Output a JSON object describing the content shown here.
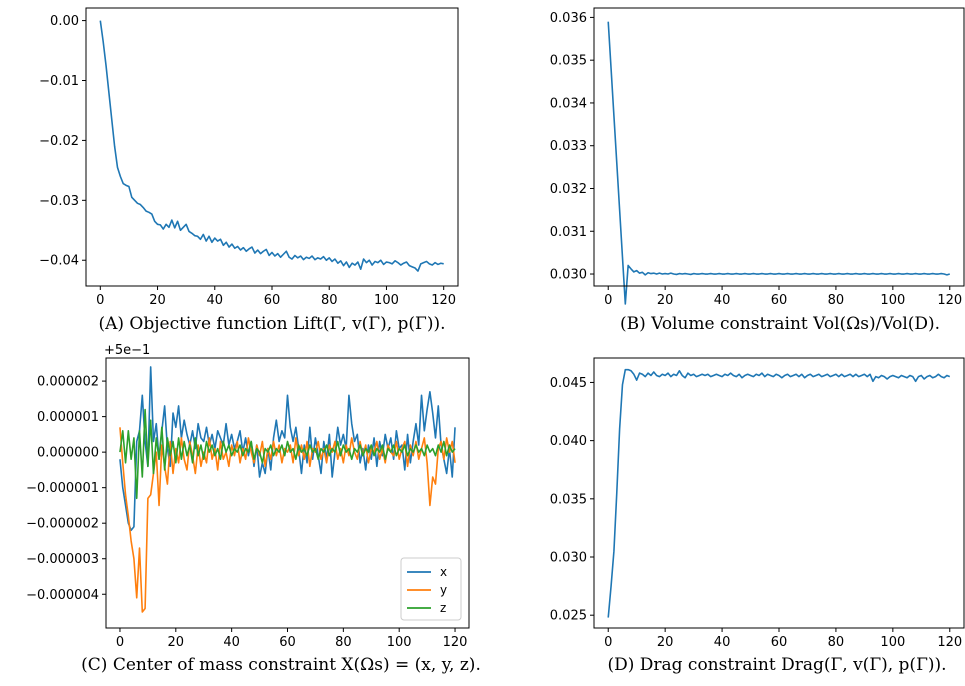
{
  "colors": {
    "x": "#1f77b4",
    "y": "#ff7f0e",
    "z": "#2ca02c",
    "axis": "#000000"
  },
  "chart_data": [
    {
      "type": "line",
      "caption": "(A) Objective function Lift(Γ, v(Γ), p(Γ)).",
      "xlim": [
        -5,
        125
      ],
      "ylim": [
        -0.0443,
        0.0021
      ],
      "xticks": [
        0,
        20,
        40,
        60,
        80,
        100,
        120
      ],
      "yticks": [
        0.0,
        -0.01,
        -0.02,
        -0.03,
        -0.04
      ],
      "ytick_labels": [
        "0.00",
        "−0.01",
        "−0.02",
        "−0.03",
        "−0.04"
      ],
      "grid": false,
      "series": [
        {
          "values": [
            0.0,
            -0.0035,
            -0.0075,
            -0.012,
            -0.0165,
            -0.021,
            -0.0245,
            -0.026,
            -0.0272,
            -0.0275,
            -0.0277,
            -0.0295,
            -0.03,
            -0.0305,
            -0.0307,
            -0.0312,
            -0.0318,
            -0.032,
            -0.0323,
            -0.0335,
            -0.034,
            -0.0341,
            -0.0348,
            -0.034,
            -0.0345,
            -0.0333,
            -0.0346,
            -0.0335,
            -0.035,
            -0.0345,
            -0.034,
            -0.0352,
            -0.0355,
            -0.0359,
            -0.036,
            -0.0365,
            -0.0357,
            -0.0368,
            -0.036,
            -0.037,
            -0.0363,
            -0.0368,
            -0.0365,
            -0.0375,
            -0.037,
            -0.0378,
            -0.0373,
            -0.038,
            -0.0377,
            -0.0383,
            -0.0379,
            -0.0385,
            -0.0381,
            -0.0378,
            -0.0388,
            -0.0383,
            -0.0389,
            -0.0385,
            -0.0382,
            -0.0392,
            -0.0387,
            -0.0393,
            -0.0389,
            -0.0395,
            -0.039,
            -0.0385,
            -0.0395,
            -0.0398,
            -0.0392,
            -0.0396,
            -0.0393,
            -0.0399,
            -0.0395,
            -0.0397,
            -0.0393,
            -0.0399,
            -0.0396,
            -0.0398,
            -0.0394,
            -0.04,
            -0.0396,
            -0.0402,
            -0.0398,
            -0.0405,
            -0.0401,
            -0.0409,
            -0.0403,
            -0.0412,
            -0.0405,
            -0.0408,
            -0.0403,
            -0.0415,
            -0.0398,
            -0.0404,
            -0.04,
            -0.0408,
            -0.0402,
            -0.0404,
            -0.04,
            -0.0407,
            -0.0403,
            -0.0404,
            -0.0406,
            -0.0401,
            -0.0404,
            -0.0408,
            -0.0405,
            -0.0403,
            -0.0409,
            -0.0411,
            -0.0413,
            -0.0418,
            -0.0406,
            -0.0404,
            -0.0402,
            -0.0406,
            -0.0408,
            -0.0404,
            -0.0407,
            -0.0405,
            -0.0406
          ]
        }
      ]
    },
    {
      "type": "line",
      "caption": "(B) Volume constraint Vol(Ωs)/Vol(D).",
      "xlim": [
        -5,
        125
      ],
      "ylim": [
        0.02972,
        0.03622
      ],
      "xticks": [
        0,
        20,
        40,
        60,
        80,
        100,
        120
      ],
      "yticks": [
        0.03,
        0.031,
        0.032,
        0.033,
        0.034,
        0.035,
        0.036
      ],
      "ytick_labels": [
        "0.030",
        "0.031",
        "0.032",
        "0.033",
        "0.034",
        "0.035",
        "0.036"
      ],
      "grid": false,
      "series": [
        {
          "values": [
            0.0359,
            0.0348,
            0.0337,
            0.0326,
            0.0315,
            0.0304,
            0.0293,
            0.0302,
            0.03012,
            0.03005,
            0.03008,
            0.03002,
            0.03004,
            0.02998,
            0.03003,
            0.03001,
            0.03002,
            0.03,
            0.03002,
            0.03,
            0.03001,
            0.03,
            0.03002,
            0.03,
            0.02999,
            0.03001,
            0.03,
            0.03001,
            0.03,
            0.02999,
            0.03001,
            0.03,
            0.03,
            0.03001,
            0.03,
            0.03,
            0.03001,
            0.03,
            0.03,
            0.03001,
            0.03,
            0.03,
            0.03001,
            0.03,
            0.03,
            0.03001,
            0.03,
            0.03,
            0.03001,
            0.03,
            0.03,
            0.03001,
            0.03,
            0.03,
            0.03001,
            0.03,
            0.03,
            0.03001,
            0.03,
            0.03,
            0.03001,
            0.03,
            0.03,
            0.03001,
            0.03,
            0.03,
            0.03001,
            0.03,
            0.03,
            0.03001,
            0.03,
            0.03,
            0.03001,
            0.03,
            0.03,
            0.03001,
            0.03,
            0.03,
            0.03001,
            0.03,
            0.03,
            0.03001,
            0.03,
            0.03,
            0.03001,
            0.03,
            0.03,
            0.03001,
            0.03,
            0.03,
            0.03001,
            0.03,
            0.03,
            0.03001,
            0.03,
            0.03,
            0.03001,
            0.03,
            0.03,
            0.03001,
            0.03,
            0.03,
            0.03001,
            0.03,
            0.03,
            0.03001,
            0.03,
            0.03,
            0.03001,
            0.03,
            0.03,
            0.03001,
            0.03,
            0.03,
            0.03001,
            0.03,
            0.03,
            0.03001,
            0.03,
            0.02998,
            0.03
          ]
        }
      ]
    },
    {
      "type": "line",
      "caption": "(C) Center of mass constraint X(Ωs) = (x, y, z).",
      "offset_label": "+5e−1",
      "xlim": [
        -5,
        125
      ],
      "ylim": [
        -4.95e-06,
        2.65e-06
      ],
      "xticks": [
        0,
        20,
        40,
        60,
        80,
        100,
        120
      ],
      "yticks": [
        2e-06,
        1e-06,
        0.0,
        -1e-06,
        -2e-06,
        -3e-06,
        -4e-06
      ],
      "ytick_labels": [
        "0.000002",
        "0.000001",
        "0.000000",
        "−0.000001",
        "−0.000002",
        "−0.000003",
        "−0.000004"
      ],
      "grid": false,
      "legend": "lower right",
      "series": [
        {
          "name": "x",
          "values": [
            -2e-07,
            -1e-06,
            -1.5e-06,
            -2e-06,
            -2.2e-06,
            -2.1e-06,
            3e-07,
            6e-07,
            1.6e-06,
            3e-07,
            -4e-07,
            2.4e-06,
            3e-07,
            8e-07,
            -2e-07,
            6e-07,
            1.3e-06,
            1e-07,
            -4e-07,
            1.1e-06,
            7e-07,
            1.3e-06,
            4e-07,
            9e-07,
            5e-07,
            2e-07,
            6e-07,
            1e-07,
            8e-07,
            4e-07,
            3e-07,
            7e-07,
            2e-07,
            5e-07,
            1e-07,
            6e-07,
            4e-07,
            2e-07,
            8e-07,
            2e-07,
            5e-07,
            1e-07,
            3e-07,
            6e-07,
            0.0,
            4e-07,
            -1e-07,
            3e-07,
            -4e-07,
            2e-07,
            -7e-07,
            -3e-07,
            -6e-07,
            1e-07,
            -5e-07,
            4e-07,
            9e-07,
            3e-07,
            6e-07,
            4e-07,
            1.6e-06,
            7e-07,
            3e-07,
            7e-07,
            1e-07,
            -6e-07,
            2e-07,
            -3e-07,
            7e-07,
            -2e-07,
            4e-07,
            -1e-07,
            -6e-07,
            3e-07,
            -2e-07,
            5e-07,
            -7e-07,
            0.0,
            7e-07,
            2e-07,
            5e-07,
            1e-07,
            1.6e-06,
            8e-07,
            3e-07,
            5e-07,
            -3e-07,
            1e-07,
            -5e-07,
            2e-07,
            -2e-07,
            4e-07,
            -4e-07,
            3e-07,
            -1e-07,
            5e-07,
            1e-07,
            4e-07,
            -2e-07,
            6e-07,
            1e-07,
            2e-07,
            -5e-07,
            5e-07,
            -3e-07,
            3e-07,
            8e-07,
            2e-07,
            1.6e-06,
            6e-07,
            1.2e-06,
            1.7e-06,
            1.1e-06,
            4e-07,
            1.3e-06,
            2e-07,
            -2e-07,
            -6e-07,
            1e-07,
            -7e-07,
            7e-07
          ]
        },
        {
          "name": "y",
          "values": [
            7e-07,
            -3e-07,
            -1.2e-06,
            -1.8e-06,
            -2.5e-06,
            -3e-06,
            -4.1e-06,
            -2.7e-06,
            -4.5e-06,
            -4.4e-06,
            -1.3e-06,
            -1.2e-06,
            -6e-07,
            0.0,
            -1.5e-06,
            2e-07,
            -4e-07,
            -9e-07,
            3e-07,
            -6e-07,
            1e-07,
            -3e-07,
            4e-07,
            -2e-07,
            -5e-07,
            3e-07,
            -1e-07,
            -6e-07,
            2e-07,
            -4e-07,
            0.0,
            -3e-07,
            4e-07,
            -2e-07,
            1e-07,
            -5e-07,
            3e-07,
            -2e-07,
            0.0,
            -4e-07,
            2e-07,
            -1e-07,
            3e-07,
            -3e-07,
            1e-07,
            -2e-07,
            4e-07,
            0.0,
            -3e-07,
            2e-07,
            -1e-07,
            3e-07,
            -4e-07,
            1e-07,
            -2e-07,
            3e-07,
            -1e-07,
            2e-07,
            -3e-07,
            1e-07,
            0.0,
            2e-07,
            -3e-07,
            4e-07,
            -1e-07,
            2e-07,
            -2e-07,
            3e-07,
            -4e-07,
            1e-07,
            0.0,
            3e-07,
            -2e-07,
            1e-07,
            -3e-07,
            2e-07,
            0.0,
            3e-07,
            -2e-07,
            1e-07,
            -3e-07,
            2e-07,
            -1e-07,
            4e-07,
            0.0,
            -2e-07,
            3e-07,
            -1e-07,
            2e-07,
            -3e-07,
            1e-07,
            0.0,
            3e-07,
            -2e-07,
            1e-07,
            -3e-07,
            2e-07,
            0.0,
            -1e-07,
            3e-07,
            -2e-07,
            1e-07,
            3e-07,
            -4e-07,
            2e-07,
            -1e-07,
            3e-07,
            -2e-07,
            1e-07,
            4e-07,
            -3e-07,
            -1.5e-06,
            -7e-07,
            -9e-07,
            1e-07,
            3e-07,
            -2e-07,
            4e-07,
            0.0,
            3e-07,
            -3e-07
          ]
        },
        {
          "name": "z",
          "values": [
            0.0,
            6e-07,
            -3e-07,
            6e-07,
            -2e-07,
            4e-07,
            -1.3e-06,
            6e-07,
            -7e-07,
            1.2e-06,
            -4e-07,
            9e-07,
            -6e-07,
            4e-07,
            -2e-07,
            7e-07,
            -5e-07,
            4e-07,
            -1e-07,
            3e-07,
            -3e-07,
            4e-07,
            -2e-07,
            3e-07,
            -1e-07,
            2e-07,
            -3e-07,
            4e-07,
            -1e-07,
            2e-07,
            -2e-07,
            3e-07,
            0.0,
            2e-07,
            -1e-07,
            1e-07,
            -2e-07,
            3e-07,
            0.0,
            2e-07,
            -1e-07,
            1e-07,
            0.0,
            2e-07,
            -1e-07,
            1e-07,
            0.0,
            3e-07,
            -2e-07,
            1e-07,
            0.0,
            -3e-07,
            1e-07,
            0.0,
            2e-07,
            -1e-07,
            1e-07,
            0.0,
            2e-07,
            -1e-07,
            3e-07,
            0.0,
            1e-07,
            -2e-07,
            2e-07,
            0.0,
            1e-07,
            -1e-07,
            2e-07,
            0.0,
            1e-07,
            -2e-07,
            1e-07,
            0.0,
            2e-07,
            -1e-07,
            1e-07,
            0.0,
            3e-07,
            -1e-07,
            2e-07,
            0.0,
            1e-07,
            -2e-07,
            1e-07,
            0.0,
            2e-07,
            -1e-07,
            1e-07,
            0.0,
            2e-07,
            -1e-07,
            1e-07,
            0.0,
            2e-07,
            -2e-07,
            1e-07,
            0.0,
            2e-07,
            -1e-07,
            1e-07,
            0.0,
            2e-07,
            -1e-07,
            1e-07,
            0.0,
            2e-07,
            0.0,
            1e-07,
            -1e-07,
            2e-07,
            0.0,
            1e-07,
            -1e-07,
            2e-07,
            0.0,
            3e-07,
            -1e-07,
            2e-07,
            0.0,
            1e-07
          ]
        }
      ]
    },
    {
      "type": "line",
      "caption": "(D) Drag constraint Drag(Γ, v(Γ), p(Γ)).",
      "xlim": [
        -5,
        125
      ],
      "ylim": [
        0.0239,
        0.0471
      ],
      "xticks": [
        0,
        20,
        40,
        60,
        80,
        100,
        120
      ],
      "yticks": [
        0.025,
        0.03,
        0.035,
        0.04,
        0.045
      ],
      "ytick_labels": [
        "0.025",
        "0.030",
        "0.035",
        "0.040",
        "0.045"
      ],
      "grid": false,
      "series": [
        {
          "values": [
            0.0248,
            0.0275,
            0.0305,
            0.0355,
            0.041,
            0.0448,
            0.0461,
            0.0461,
            0.046,
            0.0457,
            0.0452,
            0.0458,
            0.0457,
            0.0455,
            0.0458,
            0.0456,
            0.0459,
            0.0456,
            0.0455,
            0.0457,
            0.0456,
            0.0458,
            0.0455,
            0.0457,
            0.0456,
            0.046,
            0.0456,
            0.0454,
            0.0458,
            0.0456,
            0.0457,
            0.0455,
            0.0456,
            0.0457,
            0.0456,
            0.0457,
            0.0455,
            0.0456,
            0.0457,
            0.0456,
            0.0455,
            0.0457,
            0.0456,
            0.0458,
            0.0456,
            0.0455,
            0.0457,
            0.0454,
            0.0456,
            0.0457,
            0.0456,
            0.0455,
            0.0457,
            0.0456,
            0.0458,
            0.0455,
            0.0457,
            0.0456,
            0.0455,
            0.0457,
            0.0456,
            0.0454,
            0.0456,
            0.0457,
            0.0455,
            0.0456,
            0.0457,
            0.0455,
            0.0457,
            0.0454,
            0.0456,
            0.0457,
            0.0455,
            0.0456,
            0.0457,
            0.0455,
            0.0456,
            0.0457,
            0.0455,
            0.0456,
            0.0457,
            0.0455,
            0.0457,
            0.0455,
            0.0456,
            0.0457,
            0.0455,
            0.0457,
            0.0455,
            0.0456,
            0.0457,
            0.0455,
            0.0457,
            0.0451,
            0.0455,
            0.0454,
            0.0456,
            0.0455,
            0.0453,
            0.0455,
            0.0456,
            0.0455,
            0.0454,
            0.0456,
            0.0455,
            0.0454,
            0.0456,
            0.0455,
            0.0451,
            0.0455,
            0.0456,
            0.0453,
            0.0455,
            0.0456,
            0.0454,
            0.0455,
            0.0457,
            0.0455,
            0.0454,
            0.0456,
            0.0455
          ]
        }
      ]
    }
  ]
}
